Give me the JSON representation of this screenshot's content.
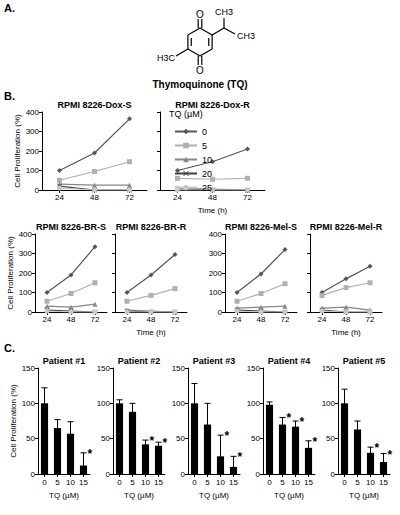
{
  "figure": {
    "panels": [
      "A.",
      "B.",
      "C."
    ],
    "legend_title": "TQ (µM)"
  },
  "structure": {
    "caption": "Thymoquinone (TQ)",
    "labels": [
      "O",
      "O",
      "H3C",
      "CH3",
      "CH3"
    ]
  },
  "chart_data": [
    {
      "type": "line",
      "title": "RPMI 8226-Dox-S",
      "x": [
        24,
        48,
        72
      ],
      "xlim": [
        12,
        84
      ],
      "xticks": [
        24,
        48,
        72
      ],
      "ylim": [
        0,
        400
      ],
      "yticks": [
        0,
        100,
        200,
        300,
        400
      ],
      "ylabel": "Cell Proliferation (%)",
      "grid": false,
      "legend": "right",
      "series": [
        {
          "name": "0",
          "color": "#555555",
          "marker": "diamond",
          "values": [
            100,
            190,
            365
          ]
        },
        {
          "name": "5",
          "color": "#b0b0b0",
          "marker": "square",
          "values": [
            50,
            95,
            145
          ]
        },
        {
          "name": "10",
          "color": "#888888",
          "marker": "triangle",
          "values": [
            30,
            25,
            25
          ]
        },
        {
          "name": "20",
          "color": "#404040",
          "marker": "cross",
          "values": [
            20,
            0,
            0
          ]
        },
        {
          "name": "25",
          "color": "#c8c8c8",
          "marker": "circle",
          "values": [
            10,
            0,
            0
          ]
        }
      ]
    },
    {
      "type": "line",
      "title": "RPMI 8226-Dox-R",
      "x": [
        24,
        48,
        72
      ],
      "xlim": [
        12,
        84
      ],
      "xticks": [
        24,
        48,
        72
      ],
      "ylim": [
        0,
        400
      ],
      "yticks": [
        0,
        100,
        200,
        300,
        400
      ],
      "xlabel": "Time (h)",
      "grid": false,
      "tick_labels": "x",
      "series": [
        {
          "name": "0",
          "color": "#555555",
          "marker": "diamond",
          "values": [
            100,
            145,
            210
          ]
        },
        {
          "name": "5",
          "color": "#b0b0b0",
          "marker": "square",
          "values": [
            60,
            55,
            60
          ]
        },
        {
          "name": "10",
          "color": "#888888",
          "marker": "triangle",
          "values": [
            10,
            5,
            0
          ]
        },
        {
          "name": "20",
          "color": "#404040",
          "marker": "cross",
          "values": [
            5,
            0,
            0
          ]
        },
        {
          "name": "25",
          "color": "#c8c8c8",
          "marker": "circle",
          "values": [
            0,
            0,
            0
          ]
        }
      ]
    },
    {
      "type": "line",
      "title": "RPMI 8226-BR-S",
      "x": [
        24,
        48,
        72
      ],
      "xlim": [
        12,
        84
      ],
      "xticks": [
        24,
        48,
        72
      ],
      "ylim": [
        0,
        400
      ],
      "yticks": [
        0,
        100,
        200,
        300,
        400
      ],
      "ylabel": "Cell Proliferation (%)",
      "grid": false,
      "series": [
        {
          "name": "0",
          "color": "#555555",
          "marker": "diamond",
          "values": [
            100,
            190,
            335
          ]
        },
        {
          "name": "5",
          "color": "#b0b0b0",
          "marker": "square",
          "values": [
            55,
            95,
            150
          ]
        },
        {
          "name": "10",
          "color": "#888888",
          "marker": "triangle",
          "values": [
            30,
            25,
            40
          ]
        },
        {
          "name": "20",
          "color": "#404040",
          "marker": "cross",
          "values": [
            10,
            5,
            0
          ]
        },
        {
          "name": "25",
          "color": "#c8c8c8",
          "marker": "circle",
          "values": [
            5,
            0,
            0
          ]
        }
      ]
    },
    {
      "type": "line",
      "title": "RPMI 8226-BR-R",
      "x": [
        24,
        48,
        72
      ],
      "xlim": [
        12,
        84
      ],
      "xticks": [
        24,
        48,
        72
      ],
      "ylim": [
        0,
        400
      ],
      "yticks": [
        0,
        100,
        200,
        300,
        400
      ],
      "xlabel": "Time (h)",
      "grid": false,
      "tick_labels": "x",
      "series": [
        {
          "name": "0",
          "color": "#555555",
          "marker": "diamond",
          "values": [
            100,
            190,
            295
          ]
        },
        {
          "name": "5",
          "color": "#b0b0b0",
          "marker": "square",
          "values": [
            55,
            85,
            120
          ]
        },
        {
          "name": "10",
          "color": "#888888",
          "marker": "triangle",
          "values": [
            10,
            5,
            0
          ]
        },
        {
          "name": "20",
          "color": "#404040",
          "marker": "cross",
          "values": [
            5,
            0,
            0
          ]
        },
        {
          "name": "25",
          "color": "#c8c8c8",
          "marker": "circle",
          "values": [
            0,
            0,
            0
          ]
        }
      ]
    },
    {
      "type": "line",
      "title": "RPMI 8226-Mel-S",
      "x": [
        24,
        48,
        72
      ],
      "xlim": [
        12,
        84
      ],
      "xticks": [
        24,
        48,
        72
      ],
      "ylim": [
        0,
        400
      ],
      "yticks": [
        0,
        100,
        200,
        300,
        400
      ],
      "grid": false,
      "series": [
        {
          "name": "0",
          "color": "#555555",
          "marker": "diamond",
          "values": [
            100,
            195,
            320
          ]
        },
        {
          "name": "5",
          "color": "#b0b0b0",
          "marker": "square",
          "values": [
            55,
            95,
            145
          ]
        },
        {
          "name": "10",
          "color": "#888888",
          "marker": "triangle",
          "values": [
            20,
            25,
            30
          ]
        },
        {
          "name": "20",
          "color": "#404040",
          "marker": "cross",
          "values": [
            10,
            5,
            0
          ]
        },
        {
          "name": "25",
          "color": "#c8c8c8",
          "marker": "circle",
          "values": [
            5,
            0,
            0
          ]
        }
      ]
    },
    {
      "type": "line",
      "title": "RPMI 8226-Mel-R",
      "x": [
        24,
        48,
        72
      ],
      "xlim": [
        12,
        84
      ],
      "xticks": [
        24,
        48,
        72
      ],
      "ylim": [
        0,
        400
      ],
      "yticks": [
        0,
        100,
        200,
        300,
        400
      ],
      "xlabel": "Time (h)",
      "grid": false,
      "tick_labels": "x",
      "series": [
        {
          "name": "0",
          "color": "#555555",
          "marker": "diamond",
          "values": [
            100,
            170,
            235
          ]
        },
        {
          "name": "5",
          "color": "#b0b0b0",
          "marker": "square",
          "values": [
            85,
            125,
            150
          ]
        },
        {
          "name": "10",
          "color": "#888888",
          "marker": "triangle",
          "values": [
            20,
            25,
            10
          ]
        },
        {
          "name": "20",
          "color": "#404040",
          "marker": "cross",
          "values": [
            10,
            0,
            0
          ]
        },
        {
          "name": "25",
          "color": "#c8c8c8",
          "marker": "circle",
          "values": [
            5,
            0,
            0
          ]
        }
      ]
    },
    {
      "type": "bar",
      "title": "Patient #1",
      "categories": [
        "0",
        "5",
        "10",
        "15"
      ],
      "values": [
        100,
        65,
        57,
        12
      ],
      "errors": [
        22,
        12,
        17,
        18
      ],
      "significant": [
        false,
        false,
        false,
        true
      ],
      "significance_label": "*",
      "color": "#000000",
      "ylim": [
        0,
        150
      ],
      "yticks": [
        0,
        50,
        100,
        150
      ],
      "ylabel": "Cell Proliferation (%)",
      "xlabel": "TQ (µM)",
      "grid": false
    },
    {
      "type": "bar",
      "title": "Patient #2",
      "categories": [
        "0",
        "5",
        "10",
        "15"
      ],
      "values": [
        100,
        88,
        42,
        40
      ],
      "errors": [
        5,
        12,
        6,
        5
      ],
      "significant": [
        false,
        false,
        true,
        true
      ],
      "significance_label": "*",
      "color": "#000000",
      "ylim": [
        0,
        150
      ],
      "yticks": [
        0,
        50,
        100,
        150
      ],
      "xlabel": "TQ (µM)",
      "grid": false
    },
    {
      "type": "bar",
      "title": "Patient #3",
      "categories": [
        "0",
        "5",
        "10",
        "15"
      ],
      "values": [
        100,
        70,
        25,
        10
      ],
      "errors": [
        28,
        30,
        30,
        15
      ],
      "significant": [
        false,
        false,
        true,
        true
      ],
      "significance_label": "*",
      "color": "#000000",
      "ylim": [
        0,
        150
      ],
      "yticks": [
        0,
        50,
        100,
        150
      ],
      "xlabel": "TQ (µM)",
      "grid": false
    },
    {
      "type": "bar",
      "title": "Patient #4",
      "categories": [
        "0",
        "5",
        "10",
        "15"
      ],
      "values": [
        98,
        70,
        67,
        37
      ],
      "errors": [
        4,
        10,
        8,
        10
      ],
      "significant": [
        false,
        true,
        true,
        true
      ],
      "significance_label": "*",
      "color": "#000000",
      "ylim": [
        0,
        150
      ],
      "yticks": [
        0,
        50,
        100,
        150
      ],
      "xlabel": "TQ (µM)",
      "grid": false
    },
    {
      "type": "bar",
      "title": "Patient #5",
      "categories": [
        "0",
        "5",
        "10",
        "15"
      ],
      "values": [
        100,
        63,
        30,
        17
      ],
      "errors": [
        20,
        12,
        8,
        12
      ],
      "significant": [
        false,
        false,
        true,
        true
      ],
      "significance_label": "*",
      "color": "#000000",
      "ylim": [
        0,
        150
      ],
      "yticks": [
        0,
        50,
        100,
        150
      ],
      "xlabel": "TQ (µM)",
      "grid": false
    }
  ]
}
